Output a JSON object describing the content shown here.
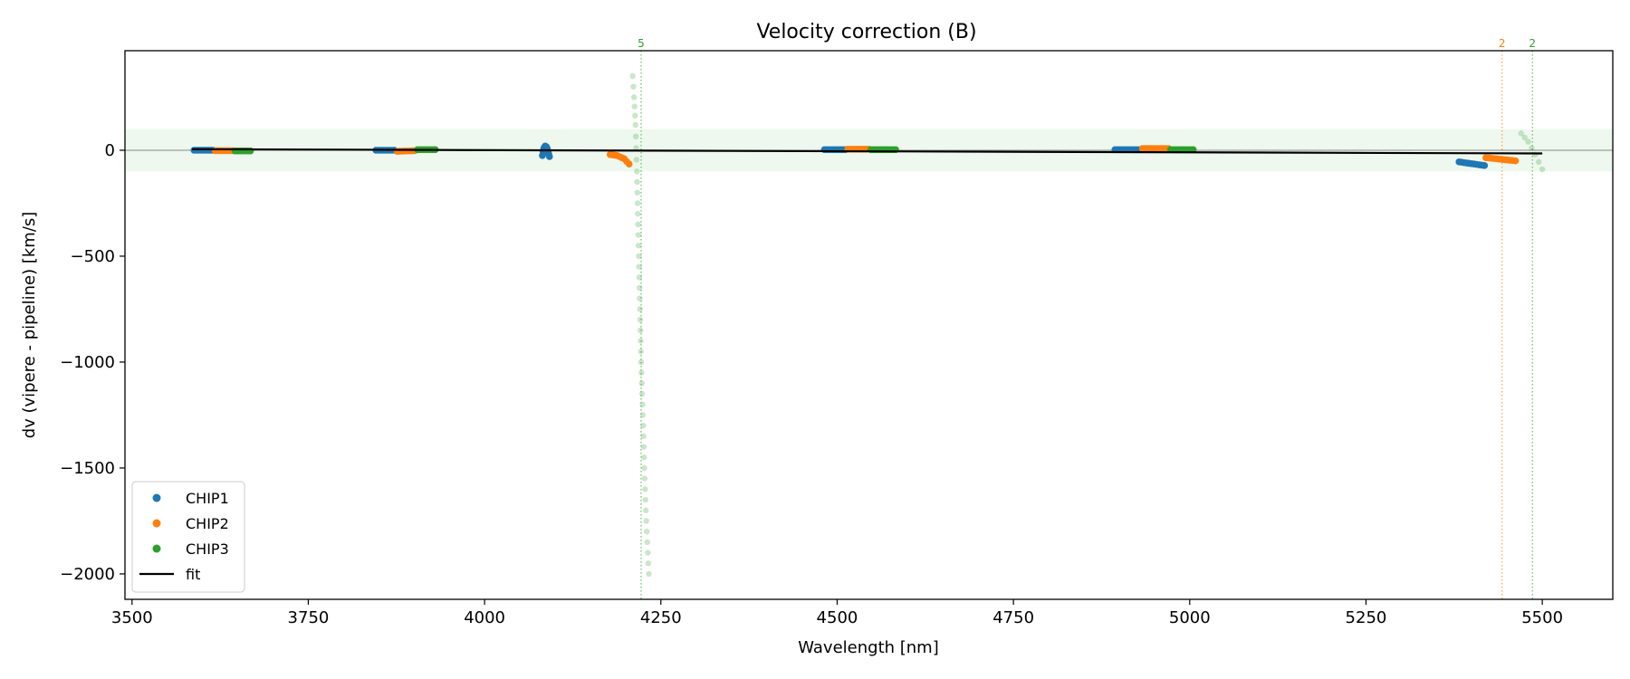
{
  "chart_data": {
    "type": "scatter",
    "title": "Velocity correction (B)",
    "xlabel": "Wavelength [nm]",
    "ylabel": "dv (vipere - pipeline) [km/s]",
    "xlim": [
      3490,
      5600
    ],
    "ylim": [
      -2120,
      470
    ],
    "xticks": [
      3500,
      3750,
      4000,
      4250,
      4500,
      4750,
      5000,
      5250,
      5500
    ],
    "yticks": [
      0,
      -500,
      -1000,
      -1500,
      -2000
    ],
    "xtick_labels": [
      "3500",
      "3750",
      "4000",
      "4250",
      "4500",
      "4750",
      "5000",
      "5250",
      "5500"
    ],
    "ytick_labels": [
      "0",
      "−500",
      "−1000",
      "−1500",
      "−2000"
    ],
    "zero_line": 0,
    "tolerance_band": [
      -100,
      100
    ],
    "colors": {
      "CHIP1": "#1f77b4",
      "CHIP2": "#ff7f0e",
      "CHIP3": "#2ca02c",
      "fit": "#000000",
      "band": "#2ca02c"
    },
    "series": [
      {
        "name": "CHIP1",
        "segments": [
          {
            "x": [
              3588,
              3615
            ],
            "y": [
              0,
              0
            ]
          },
          {
            "x": [
              3846,
              3872
            ],
            "y": [
              0,
              0
            ]
          },
          {
            "x": [
              4082,
              4084,
              4086,
              4088,
              4090,
              4092
            ],
            "y": [
              -25,
              10,
              20,
              15,
              -5,
              -30
            ]
          },
          {
            "x": [
              4482,
              4512
            ],
            "y": [
              3,
              3
            ]
          },
          {
            "x": [
              4894,
              4930
            ],
            "y": [
              3,
              3
            ]
          },
          {
            "x": [
              5382,
              5418
            ],
            "y": [
              -55,
              -72
            ]
          }
        ]
      },
      {
        "name": "CHIP2",
        "segments": [
          {
            "x": [
              3618,
              3643
            ],
            "y": [
              -2,
              -2
            ]
          },
          {
            "x": [
              3876,
              3901
            ],
            "y": [
              -5,
              -2
            ]
          },
          {
            "x": [
              4178,
              4188,
              4198,
              4205
            ],
            "y": [
              -20,
              -25,
              -40,
              -65
            ]
          },
          {
            "x": [
              4515,
              4545
            ],
            "y": [
              5,
              5
            ]
          },
          {
            "x": [
              4933,
              4970
            ],
            "y": [
              8,
              8
            ]
          },
          {
            "x": [
              5420,
              5462
            ],
            "y": [
              -35,
              -50
            ]
          }
        ]
      },
      {
        "name": "CHIP3",
        "segments": [
          {
            "x": [
              3646,
              3668
            ],
            "y": [
              -3,
              -3
            ]
          },
          {
            "x": [
              3905,
              3930
            ],
            "y": [
              3,
              3
            ]
          },
          {
            "x": [
              4548,
              4583
            ],
            "y": [
              3,
              3
            ]
          },
          {
            "x": [
              4973,
              5005
            ],
            "y": [
              3,
              3
            ]
          }
        ]
      }
    ],
    "outliers": [
      {
        "chip": "CHIP3",
        "x": [
          4210,
          4212,
          4214,
          4216,
          4218,
          4220,
          4222,
          4225,
          4227,
          4230,
          4233
        ],
        "y": [
          350,
          250,
          120,
          -100,
          -400,
          -700,
          -1000,
          -1300,
          -1550,
          -1800,
          -2000
        ]
      },
      {
        "chip": "CHIP3",
        "x": [
          5470,
          5480,
          5490,
          5500
        ],
        "y": [
          80,
          40,
          -20,
          -90
        ]
      }
    ],
    "fit": {
      "x": [
        3585,
        5500
      ],
      "y": [
        5,
        -15
      ]
    },
    "vlines": [
      {
        "x": 4222,
        "label": "5",
        "color": "#2ca02c"
      },
      {
        "x": 5443,
        "label": "2",
        "color": "#ff7f0e"
      },
      {
        "x": 5486,
        "label": "2",
        "color": "#2ca02c"
      }
    ],
    "legend": {
      "position": "lower-left",
      "entries": [
        {
          "label": "CHIP1",
          "kind": "marker",
          "color": "#1f77b4"
        },
        {
          "label": "CHIP2",
          "kind": "marker",
          "color": "#ff7f0e"
        },
        {
          "label": "CHIP3",
          "kind": "marker",
          "color": "#2ca02c"
        },
        {
          "label": "fit",
          "kind": "line",
          "color": "#000000"
        }
      ]
    }
  }
}
